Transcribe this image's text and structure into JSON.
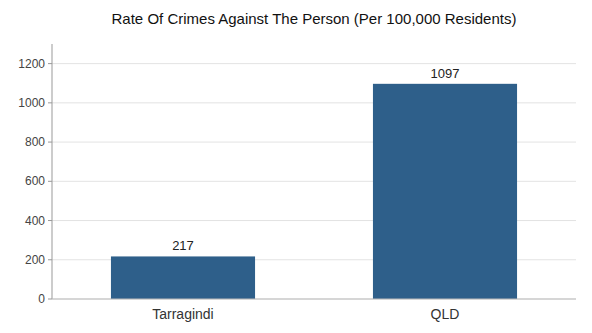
{
  "chart_data": {
    "type": "bar",
    "title": "Rate Of Crimes Against The Person (Per 100,000 Residents)",
    "categories": [
      "Tarragindi",
      "QLD"
    ],
    "values": [
      217,
      1097
    ],
    "colors": [
      "#2e5f8a",
      "#2e5f8a"
    ],
    "ylim": [
      0,
      1300
    ],
    "yticks": [
      0,
      200,
      400,
      600,
      800,
      1000,
      1200
    ],
    "grid": true,
    "data_labels": true
  }
}
